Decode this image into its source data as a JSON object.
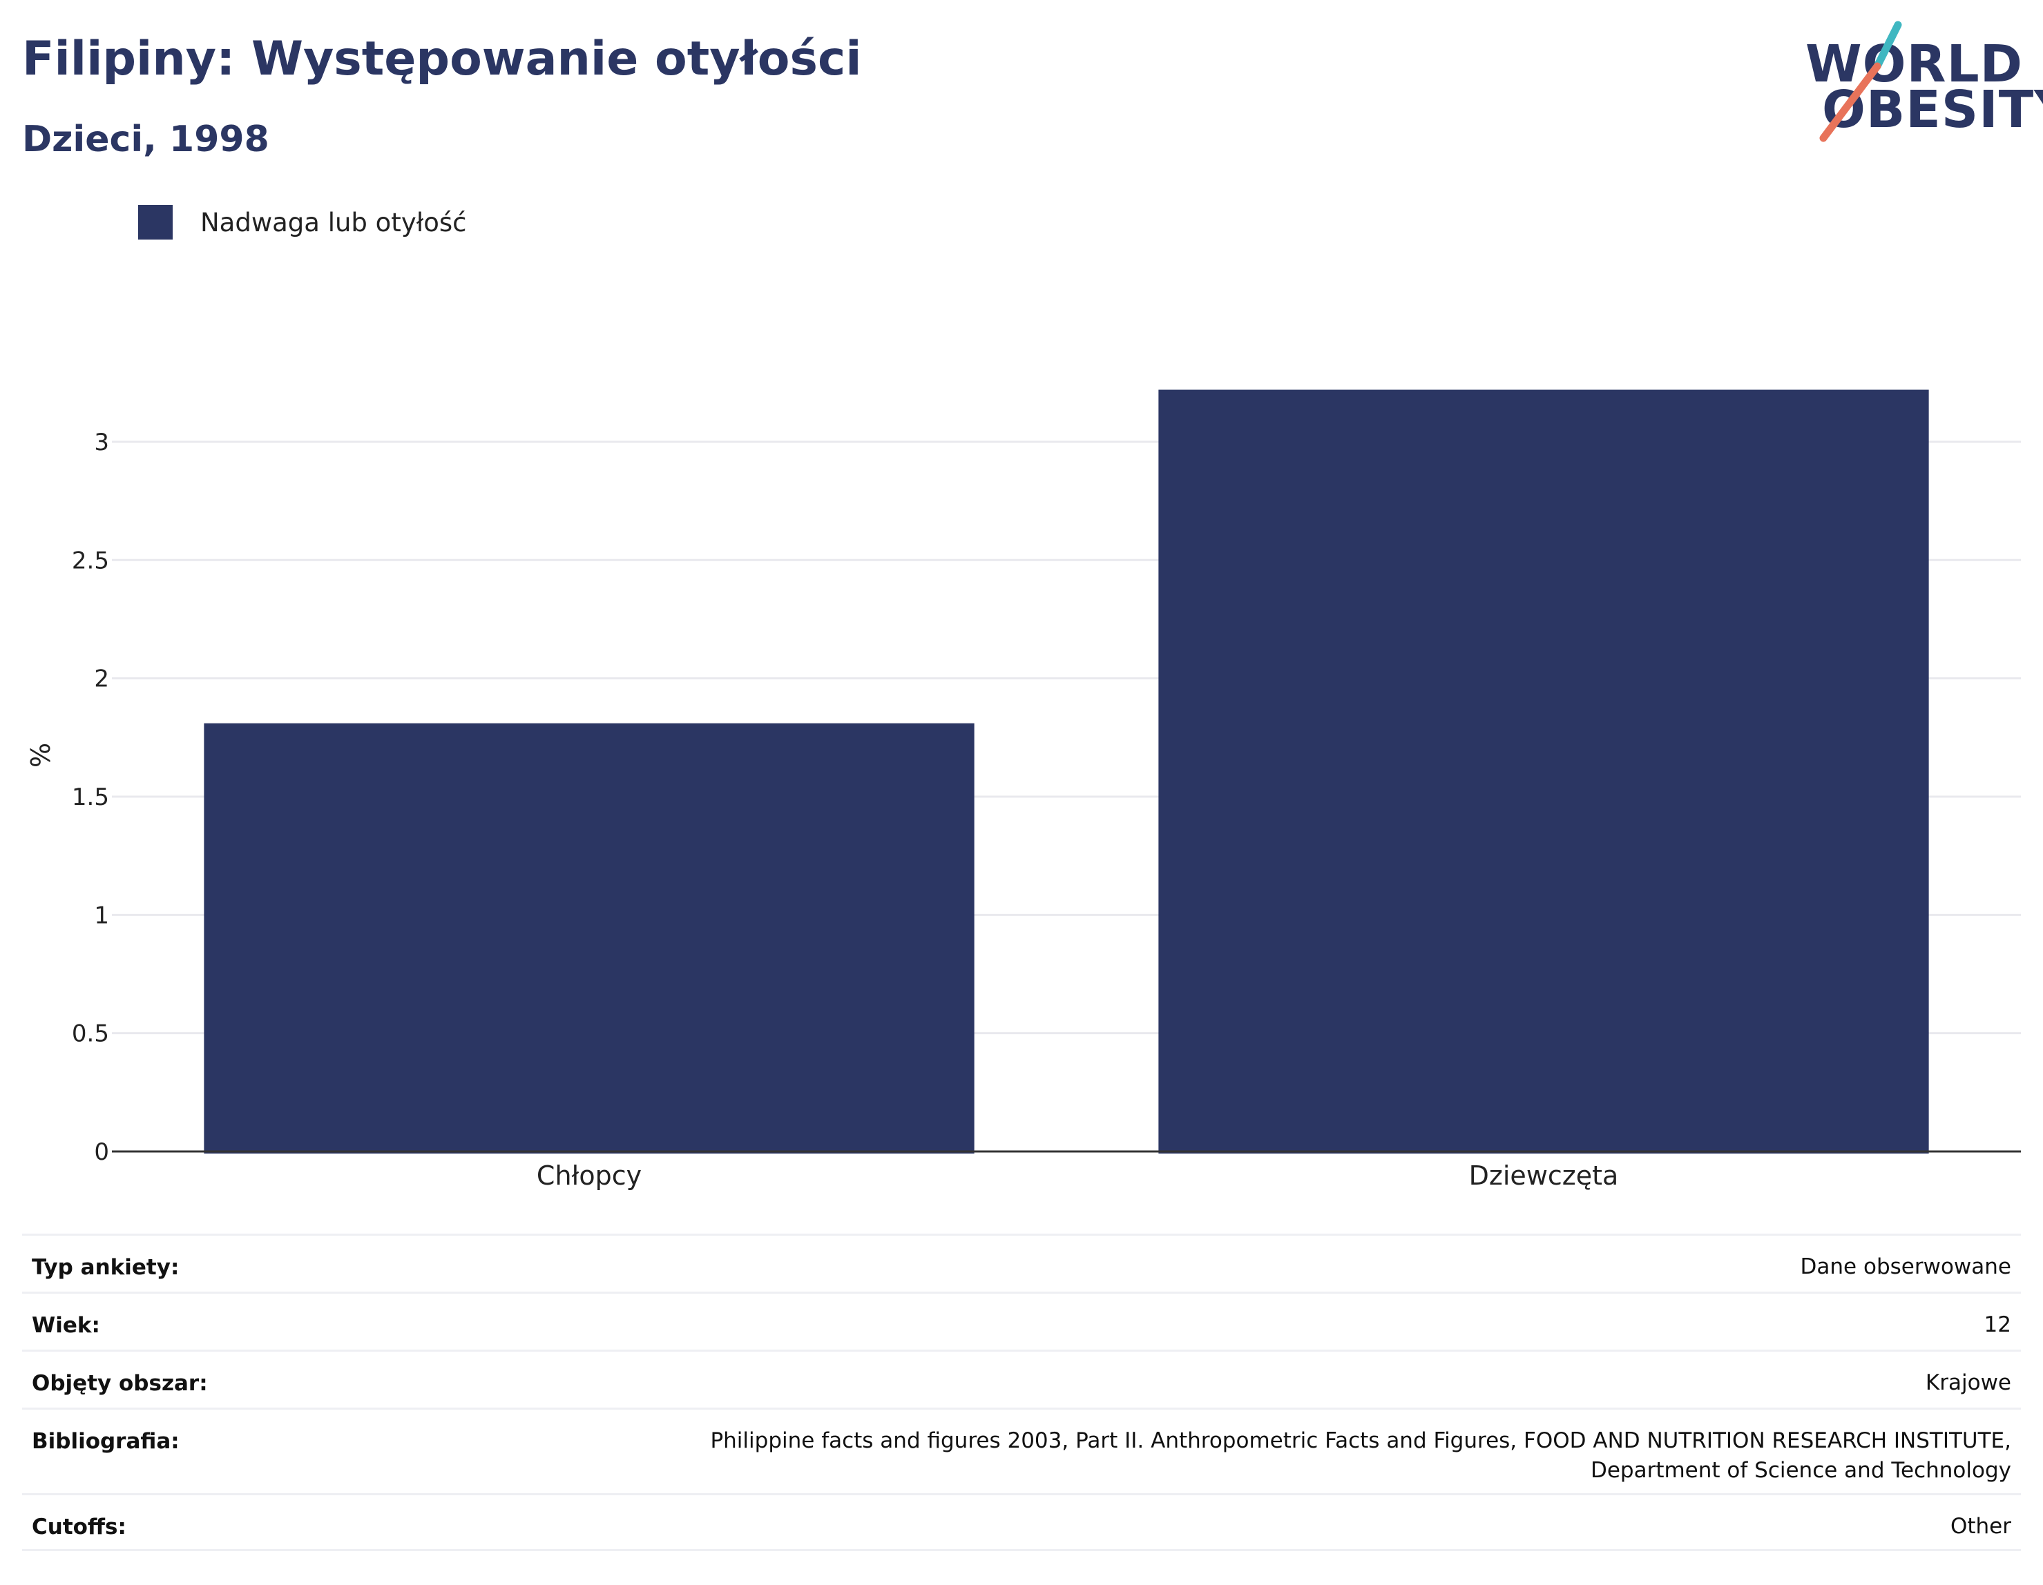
{
  "header": {
    "title": "Filipiny: Występowanie otyłości",
    "subtitle": "Dzieci, 1998"
  },
  "logo": {
    "line1": "WORLD",
    "line2": "OBESITY",
    "slash_color_top": "#3fb7c1",
    "slash_color_bottom": "#e8735a"
  },
  "colors": {
    "bar": "#2b3663",
    "title": "#2b3663",
    "gridline": "#e9e9ee",
    "axis": "#333333"
  },
  "chart_data": {
    "type": "bar",
    "categories": [
      "Chłopcy",
      "Dziewczęta"
    ],
    "series": [
      {
        "name": "Nadwaga lub otyłość",
        "values": [
          1.81,
          3.22
        ]
      }
    ],
    "title": "Filipiny: Występowanie otyłości",
    "subtitle": "Dzieci, 1998",
    "xlabel": "",
    "ylabel": "%",
    "ylim": [
      0,
      3.35
    ],
    "yticks": [
      0,
      0.5,
      1,
      1.5,
      2,
      2.5,
      3
    ],
    "ytick_labels": [
      "0",
      "0.5",
      "1",
      "1.5",
      "2",
      "2.5",
      "3"
    ],
    "grid": true,
    "legend_position": "top-left"
  },
  "info": {
    "rows": [
      {
        "key": "Typ ankiety:",
        "value": "Dane obserwowane"
      },
      {
        "key": "Wiek:",
        "value": "12"
      },
      {
        "key": "Objęty obszar:",
        "value": "Krajowe"
      },
      {
        "key": "Bibliografia:",
        "value_lines": [
          "Philippine facts and figures 2003, Part II. Anthropometric Facts and Figures, FOOD AND NUTRITION RESEARCH INSTITUTE,",
          "Department of Science and Technology"
        ]
      },
      {
        "key": "Cutoffs:",
        "value": "Other"
      }
    ]
  }
}
